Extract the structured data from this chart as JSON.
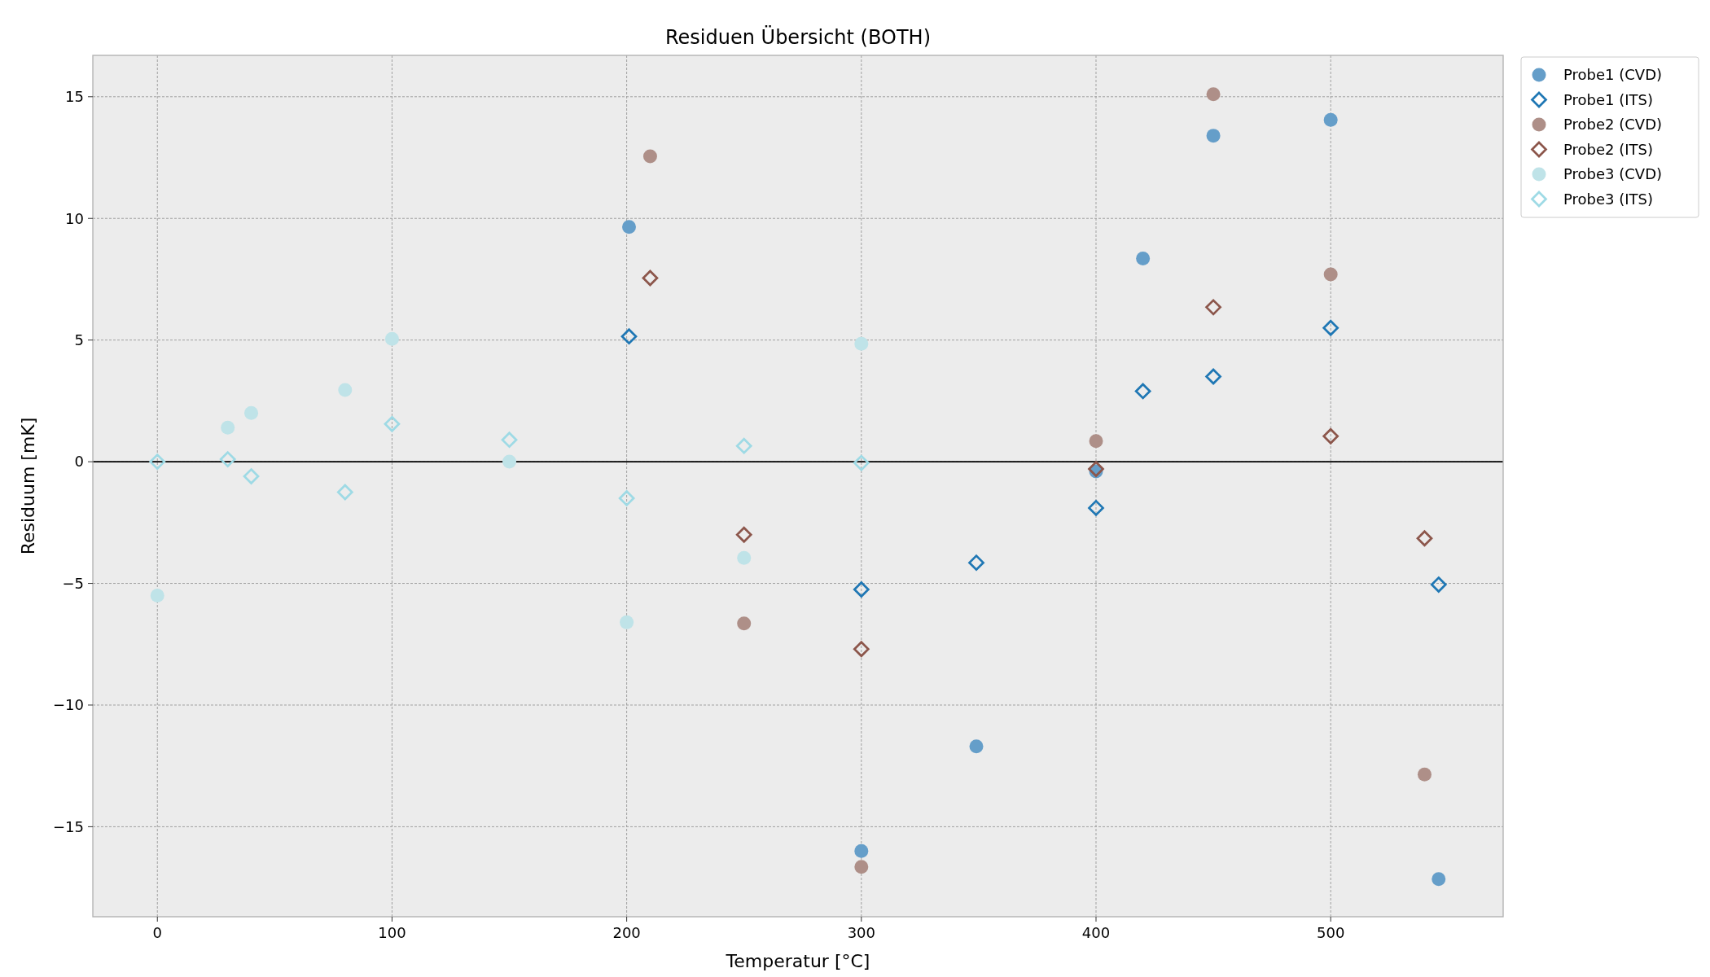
{
  "chart_data": {
    "type": "scatter",
    "title": "Residuen Übersicht (BOTH)",
    "xlabel": "Temperatur [°C]",
    "ylabel": "Residuum [mK]",
    "xlim": [
      -27.5,
      573.5
    ],
    "ylim": [
      -18.7,
      16.7
    ],
    "xticks": [
      0,
      100,
      200,
      300,
      400,
      500
    ],
    "yticks": [
      -15,
      -10,
      -5,
      0,
      5,
      10,
      15
    ],
    "grid": true,
    "legend": "top right",
    "ref_lines": [
      {
        "axis": "y",
        "value": 0,
        "color": "#000000"
      }
    ],
    "series": [
      {
        "name": "Probe1 (CVD)",
        "color": "#659ec9",
        "marker": "circle",
        "x": [
          201,
          450,
          500,
          420,
          400,
          349,
          300,
          546
        ],
        "values": [
          9.65,
          13.4,
          14.05,
          8.35,
          -0.4,
          -11.7,
          -16.0,
          -17.15
        ]
      },
      {
        "name": "Probe1 (ITS)",
        "color": "#1f77b4",
        "marker": "diamond",
        "x": [
          201,
          420,
          450,
          500,
          400,
          349,
          300,
          546
        ],
        "values": [
          5.15,
          2.9,
          3.5,
          5.5,
          -1.9,
          -4.15,
          -5.25,
          -5.05
        ]
      },
      {
        "name": "Probe2 (CVD)",
        "color": "#ae8f88",
        "marker": "circle",
        "x": [
          210,
          450,
          500,
          400,
          250,
          300,
          540
        ],
        "values": [
          12.55,
          15.1,
          7.7,
          0.85,
          -6.65,
          -16.65,
          -12.85
        ]
      },
      {
        "name": "Probe2 (ITS)",
        "color": "#8c564b",
        "marker": "diamond",
        "x": [
          210,
          450,
          500,
          400,
          250,
          300,
          540
        ],
        "values": [
          7.55,
          6.35,
          1.05,
          -0.3,
          -3.0,
          -7.7,
          -3.15
        ]
      },
      {
        "name": "Probe3 (CVD)",
        "color": "#bfe3e8",
        "marker": "circle",
        "x": [
          0,
          30,
          40,
          80,
          100,
          150,
          200,
          250,
          300
        ],
        "values": [
          -5.5,
          1.4,
          2.0,
          2.95,
          5.05,
          0.0,
          -6.6,
          -3.95,
          4.85
        ]
      },
      {
        "name": "Probe3 (ITS)",
        "color": "#9edae5",
        "marker": "diamond",
        "x": [
          0,
          30,
          40,
          80,
          100,
          150,
          200,
          250,
          300
        ],
        "values": [
          0.0,
          0.1,
          -0.6,
          -1.25,
          1.55,
          0.9,
          -1.5,
          0.65,
          -0.05
        ]
      }
    ]
  }
}
